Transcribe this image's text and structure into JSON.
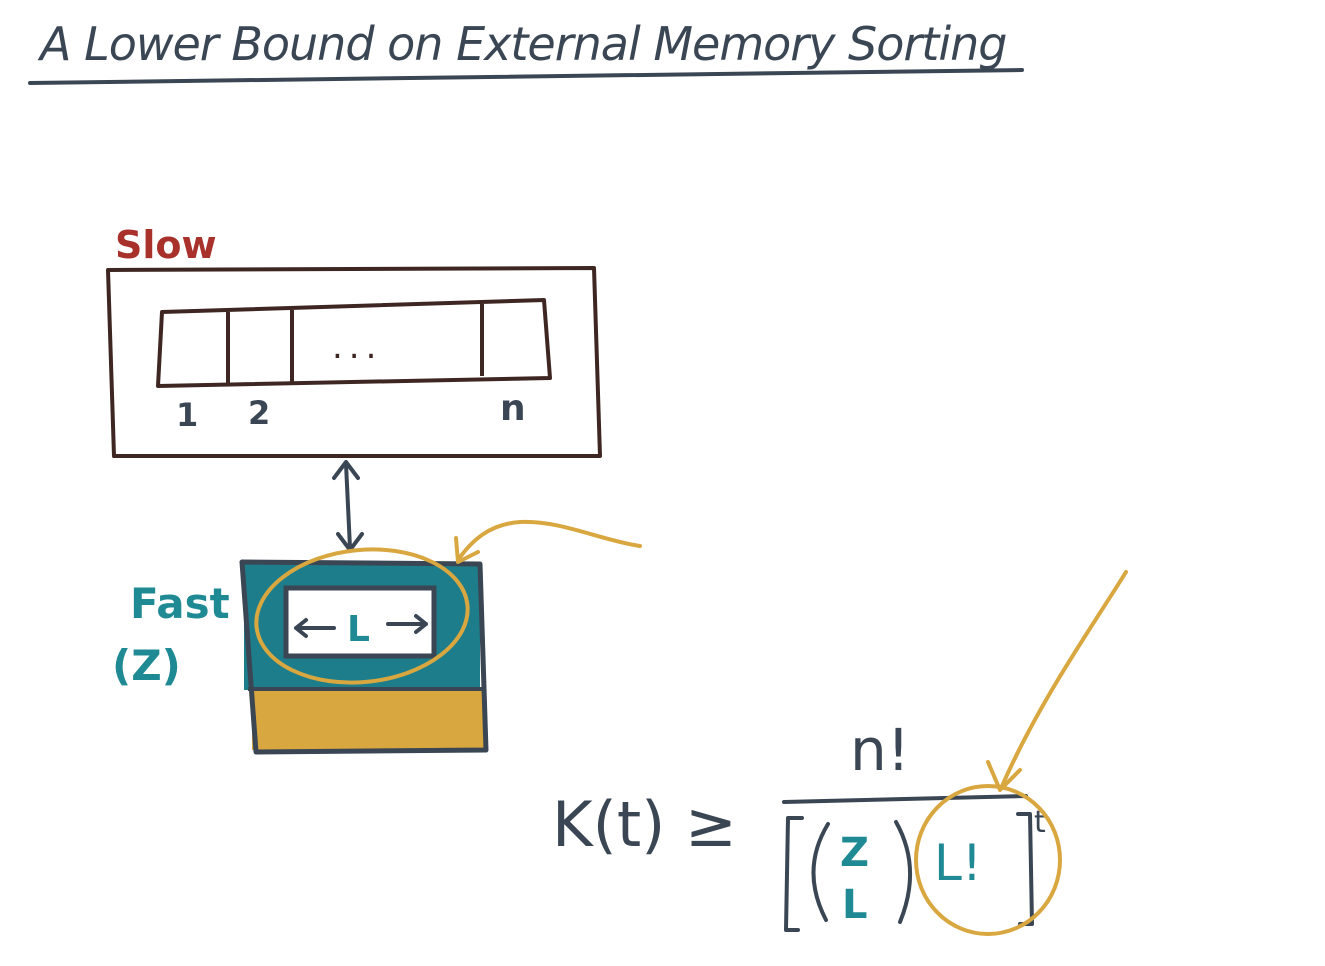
{
  "title": "A Lower Bound on External Memory Sorting",
  "slow_memory": {
    "label": "Slow",
    "cell_ellipsis": "...",
    "index_first": "1",
    "index_second": "2",
    "index_last": "n"
  },
  "fast_memory": {
    "label": "Fast",
    "capacity": "(Z)",
    "block_label": "L"
  },
  "formula": {
    "lhs": "K(t) ≥",
    "numerator": "n!",
    "binom_top": "Z",
    "binom_bottom": "L",
    "factorial": "L!",
    "exponent": "t"
  },
  "colors": {
    "ink": "#3b4654",
    "slow_red": "#a8312b",
    "fast_teal": "#1f8a93",
    "fast_fill": "#1e7d8a",
    "gold": "#d9a740",
    "brown": "#3e2723"
  }
}
